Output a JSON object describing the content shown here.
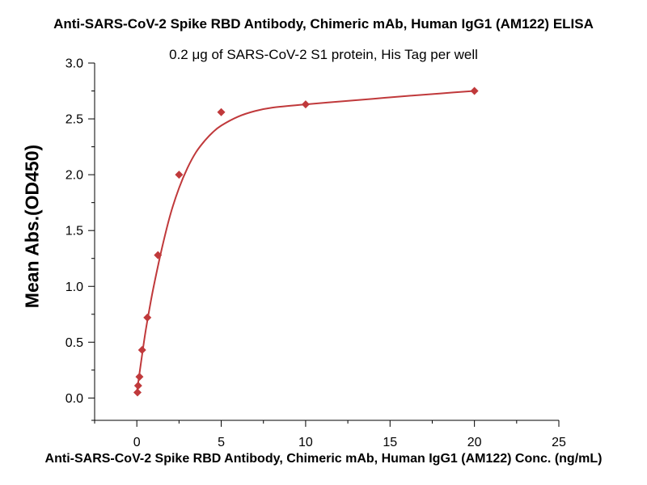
{
  "chart_data": {
    "type": "scatter",
    "title": "Anti-SARS-CoV-2 Spike RBD Antibody, Chimeric mAb, Human IgG1 (AM122) ELISA",
    "subtitle": "0.2 μg of SARS-CoV-2 S1 protein, His Tag per well",
    "xlabel": "Anti-SARS-CoV-2 Spike RBD Antibody, Chimeric mAb, Human IgG1 (AM122) Conc. (ng/mL)",
    "ylabel": "Mean Abs.(OD450)",
    "xlim": [
      -2.5,
      25
    ],
    "ylim": [
      -0.2,
      3.0
    ],
    "xticks": [
      "0",
      "5",
      "10",
      "15",
      "20",
      "25"
    ],
    "yticks": [
      "0.0",
      "0.5",
      "1.0",
      "1.5",
      "2.0",
      "2.5",
      "3.0"
    ],
    "series": [
      {
        "name": "AM122",
        "x": [
          0.039,
          0.078,
          0.156,
          0.313,
          0.625,
          1.25,
          2.5,
          5,
          10,
          20
        ],
        "values": [
          0.05,
          0.11,
          0.19,
          0.43,
          0.72,
          1.28,
          2.0,
          2.56,
          2.63,
          2.75
        ],
        "color": "#c0393b",
        "fit": "4PL"
      }
    ],
    "curve": [
      [
        0,
        0.05
      ],
      [
        0.25,
        0.32
      ],
      [
        0.5,
        0.58
      ],
      [
        0.75,
        0.8
      ],
      [
        1,
        1.0
      ],
      [
        1.5,
        1.35
      ],
      [
        2,
        1.65
      ],
      [
        2.5,
        1.88
      ],
      [
        3,
        2.06
      ],
      [
        3.5,
        2.2
      ],
      [
        4,
        2.3
      ],
      [
        4.5,
        2.38
      ],
      [
        5,
        2.44
      ],
      [
        6,
        2.52
      ],
      [
        7,
        2.57
      ],
      [
        8,
        2.6
      ],
      [
        10,
        2.63
      ],
      [
        12,
        2.655
      ],
      [
        14,
        2.68
      ],
      [
        16,
        2.705
      ],
      [
        18,
        2.728
      ],
      [
        20,
        2.75
      ]
    ]
  }
}
